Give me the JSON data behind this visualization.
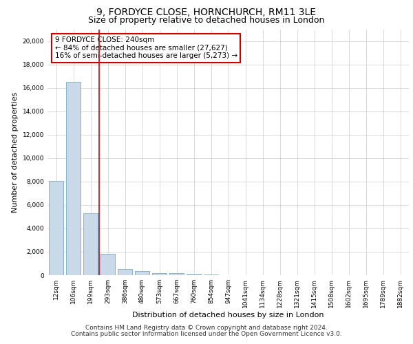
{
  "title_line1": "9, FORDYCE CLOSE, HORNCHURCH, RM11 3LE",
  "title_line2": "Size of property relative to detached houses in London",
  "xlabel": "Distribution of detached houses by size in London",
  "ylabel": "Number of detached properties",
  "categories": [
    "12sqm",
    "106sqm",
    "199sqm",
    "293sqm",
    "386sqm",
    "480sqm",
    "573sqm",
    "667sqm",
    "760sqm",
    "854sqm",
    "947sqm",
    "1041sqm",
    "1134sqm",
    "1228sqm",
    "1321sqm",
    "1415sqm",
    "1508sqm",
    "1602sqm",
    "1695sqm",
    "1789sqm",
    "1882sqm"
  ],
  "values": [
    8050,
    16500,
    5300,
    1800,
    500,
    350,
    200,
    170,
    110,
    70,
    0,
    0,
    0,
    0,
    0,
    0,
    0,
    0,
    0,
    0,
    0
  ],
  "bar_color": "#c9d9e8",
  "bar_edge_color": "#7aaac8",
  "annotation_line_color": "#cc0000",
  "annotation_box_text": "9 FORDYCE CLOSE: 240sqm\n← 84% of detached houses are smaller (27,627)\n16% of semi-detached houses are larger (5,273) →",
  "ylim": [
    0,
    21000
  ],
  "yticks": [
    0,
    2000,
    4000,
    6000,
    8000,
    10000,
    12000,
    14000,
    16000,
    18000,
    20000
  ],
  "grid_color": "#cccccc",
  "background_color": "#ffffff",
  "footer_line1": "Contains HM Land Registry data © Crown copyright and database right 2024.",
  "footer_line2": "Contains public sector information licensed under the Open Government Licence v3.0.",
  "title_fontsize": 10,
  "subtitle_fontsize": 9,
  "axis_label_fontsize": 8,
  "tick_fontsize": 6.5,
  "annotation_fontsize": 7.5,
  "footer_fontsize": 6.5
}
